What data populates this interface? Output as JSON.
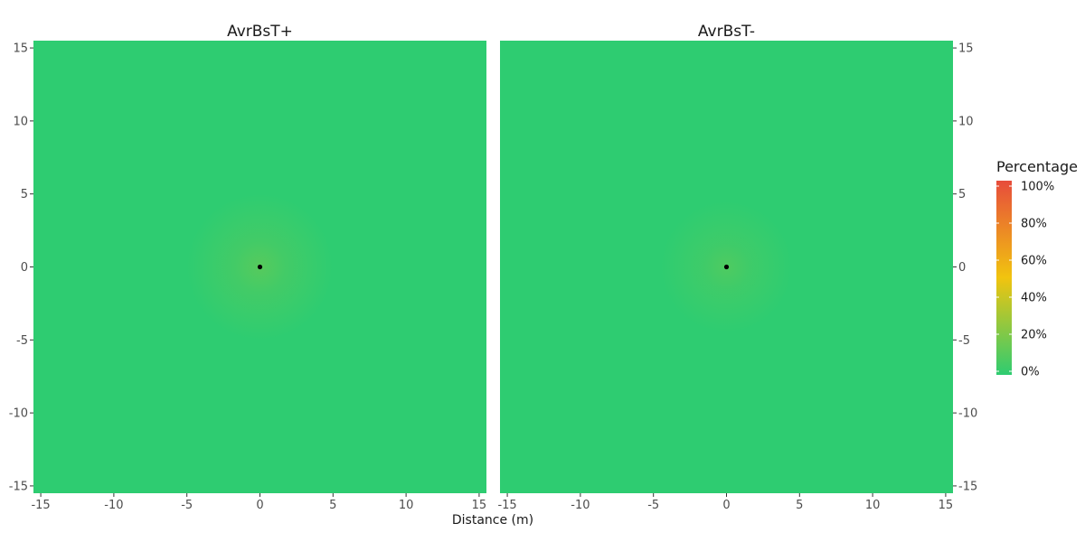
{
  "chart_data": {
    "type": "heatmap",
    "xlabel": "Distance (m)",
    "ylabel": "",
    "xlim": [
      -15.5,
      15.5
    ],
    "ylim": [
      -15.5,
      15.5
    ],
    "x_ticks": [
      -15,
      -10,
      -5,
      0,
      5,
      10,
      15
    ],
    "y_ticks": [
      -15,
      -10,
      -5,
      0,
      5,
      10,
      15
    ],
    "grid": false,
    "legend": {
      "title": "Percentage",
      "placement": "right",
      "ticks": [
        "0%",
        "20%",
        "40%",
        "60%",
        "80%",
        "100%"
      ],
      "tick_values": [
        0,
        20,
        40,
        60,
        80,
        100
      ],
      "colors": [
        "#2ecc71",
        "#f1c40f",
        "#e74c3c"
      ]
    },
    "panels": [
      {
        "title": "AvrBsT+",
        "background_value": 0,
        "source_point": [
          0,
          0
        ],
        "halo_peak_value": 5,
        "halo_radius": 5
      },
      {
        "title": "AvrBsT-",
        "background_value": 0,
        "source_point": [
          0,
          0
        ],
        "halo_peak_value": 4,
        "halo_radius": 4.5
      }
    ]
  }
}
